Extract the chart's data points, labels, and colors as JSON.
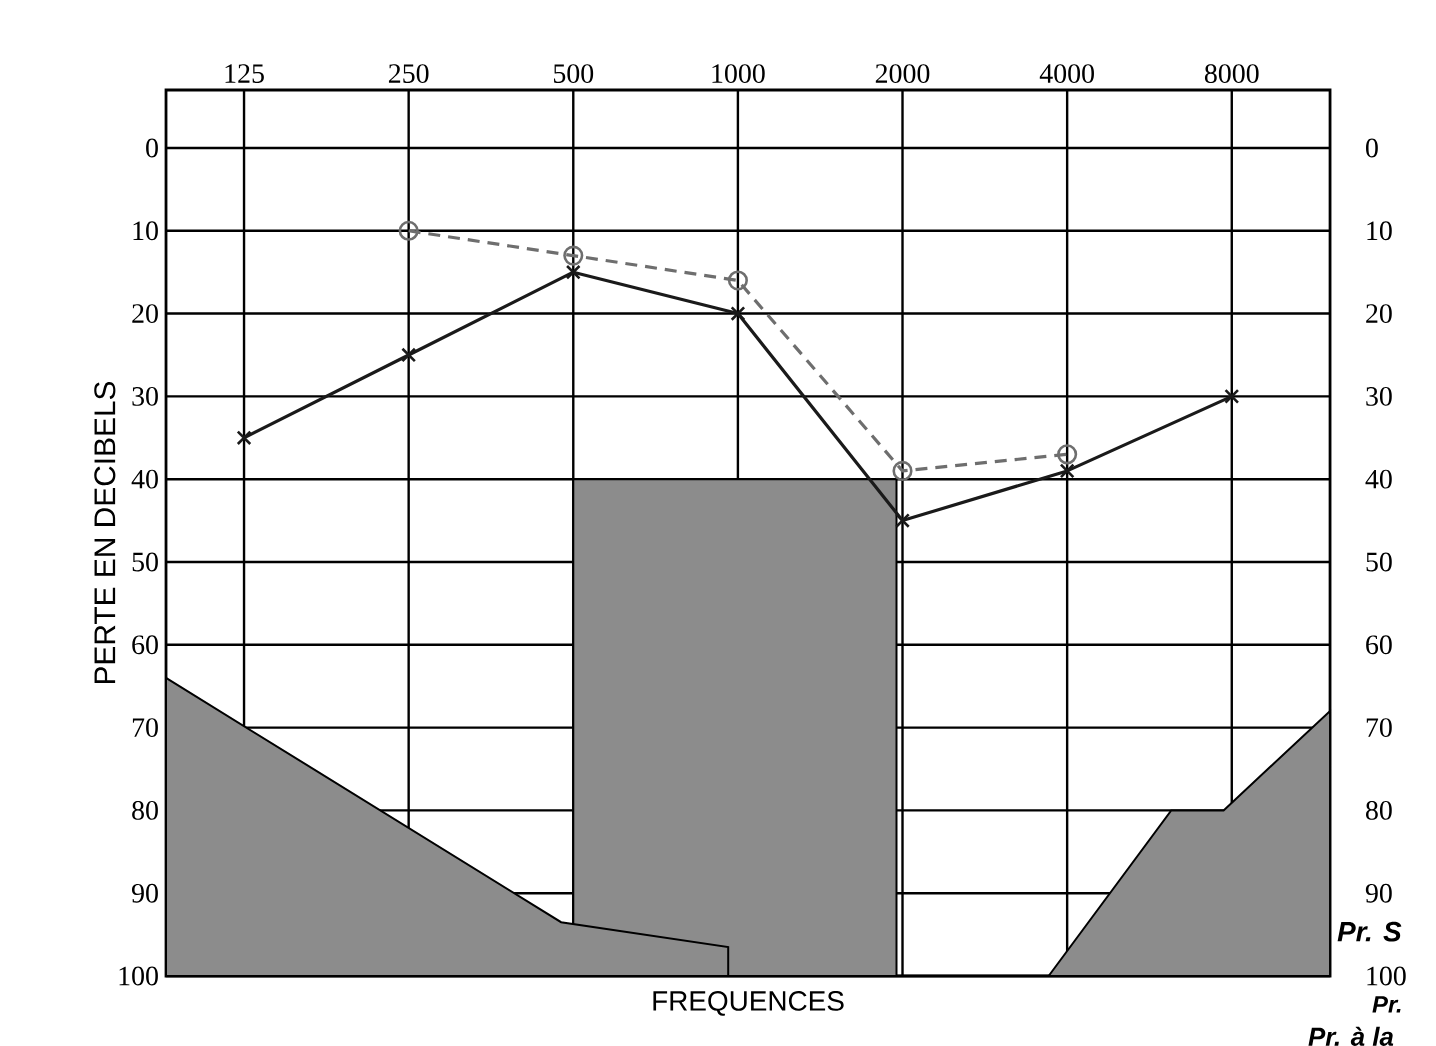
{
  "chart_data": {
    "type": "line",
    "xlabel": "FREQUENCES",
    "ylabel": "PERTE EN DECIBELS",
    "log": "x",
    "xlim": [
      90,
      12100
    ],
    "xticks": [
      125,
      250,
      500,
      1000,
      2000,
      4000,
      8000
    ],
    "ylim": [
      100,
      -7
    ],
    "yticks": [
      0,
      10,
      20,
      30,
      40,
      50,
      60,
      70,
      80,
      90,
      100
    ],
    "y2lim": [
      100,
      -7
    ],
    "y2ticks": [
      0,
      10,
      20,
      30,
      40,
      50,
      60,
      70,
      80,
      90,
      100
    ],
    "grid": true,
    "legend": false,
    "series": [
      {
        "type": "area",
        "color": "#8c8c8c",
        "x": [
          500,
          1950,
          1950,
          500
        ],
        "values": [
          40,
          40,
          100,
          100
        ]
      },
      {
        "type": "area",
        "color": "#8c8c8c",
        "x": [
          90,
          475,
          960,
          960,
          90
        ],
        "values": [
          64,
          93.5,
          96.5,
          100,
          100
        ]
      },
      {
        "type": "area",
        "color": "#8c8c8c",
        "x": [
          3700,
          6200,
          7730,
          12100,
          12100
        ],
        "values": [
          100,
          80,
          80,
          68,
          100
        ]
      },
      {
        "color": "#6e6e6e",
        "marker": "circle",
        "line_style": "dashed",
        "x": [
          250,
          500,
          1000,
          2000,
          4000
        ],
        "values": [
          10,
          13,
          16,
          39,
          37
        ]
      },
      {
        "color": "#1a1a1a",
        "marker": "cross",
        "line_style": "solid",
        "x": [
          125,
          250,
          500,
          1000,
          2000,
          4000,
          8000
        ],
        "values": [
          35,
          25,
          15,
          20,
          45,
          39,
          30
        ]
      }
    ],
    "annotations": [
      "Pr. S",
      "Pr.",
      "Pr. à la"
    ]
  }
}
